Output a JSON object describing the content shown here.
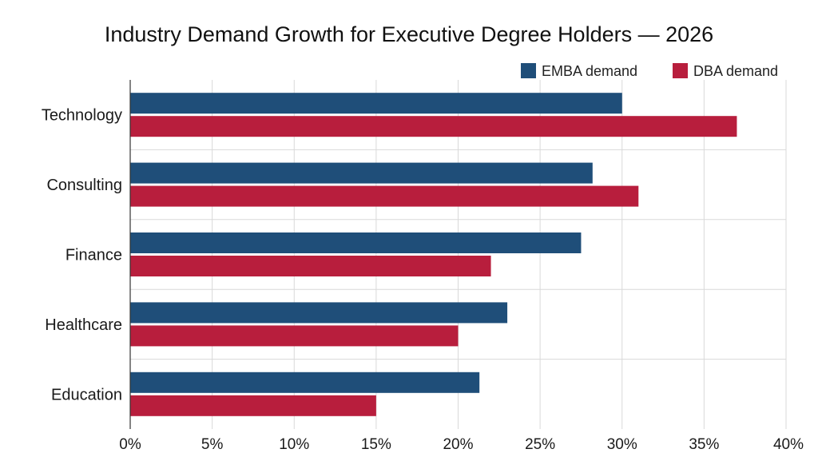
{
  "chart_data": {
    "type": "bar",
    "orientation": "horizontal",
    "title": "Industry Demand Growth for Executive Degree Holders — 2026",
    "categories": [
      "Technology",
      "Consulting",
      "Finance",
      "Healthcare",
      "Education"
    ],
    "series": [
      {
        "name": "EMBA demand",
        "color": "#1f4e79",
        "values": [
          30,
          28.2,
          27.5,
          23,
          21.3
        ]
      },
      {
        "name": "DBA demand",
        "color": "#b81e3d",
        "values": [
          37,
          31,
          22,
          20,
          15
        ]
      }
    ],
    "xlim": [
      0,
      40
    ],
    "ticks": [
      "0%",
      "5%",
      "10%",
      "15%",
      "20%",
      "25%",
      "30%",
      "35%",
      "40%"
    ],
    "tick_values": [
      0,
      5,
      10,
      15,
      20,
      25,
      30,
      35,
      40
    ],
    "xlabel": "",
    "ylabel": "",
    "grid": true,
    "legend_position": "top-right"
  }
}
